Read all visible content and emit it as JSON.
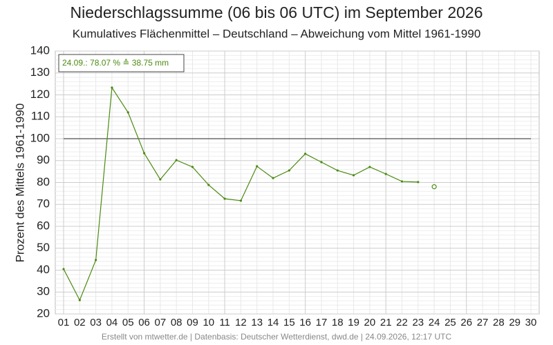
{
  "chart_data": {
    "type": "line",
    "title": "Niederschlagssumme (06 bis 06 UTC) im September 2026",
    "subtitle": "Kumulatives Flächenmittel – Deutschland – Abweichung vom Mittel 1961-1990",
    "y_label": "Prozent des Mittels 1961-1990",
    "annotation": "24.09.: 78.07 % ≙ 38.75 mm",
    "footer": "Erstellt von mtwetter.de | Datenbasis: Deutscher Wetterdienst, dwd.de | 24.09.2026, 12:17 UTC",
    "categories": [
      "01",
      "02",
      "03",
      "04",
      "05",
      "06",
      "07",
      "08",
      "09",
      "10",
      "11",
      "12",
      "13",
      "14",
      "15",
      "16",
      "17",
      "18",
      "19",
      "20",
      "21",
      "22",
      "23",
      "24",
      "25",
      "26",
      "27",
      "28",
      "29",
      "30"
    ],
    "series": [
      {
        "color": "#4a8a10",
        "marker": "dot",
        "values": [
          40.5,
          26.3,
          44.6,
          123.3,
          112,
          93.4,
          81.4,
          90.2,
          87.1,
          78.9,
          72.6,
          71.7,
          87.4,
          82.0,
          85.5,
          93.1,
          89.3,
          85.5,
          83.3,
          87.1,
          83.9,
          80.5,
          80.2,
          null,
          null,
          null,
          null,
          null,
          null,
          null
        ]
      },
      {
        "color": "#4a8a10",
        "marker": "open",
        "values": [
          null,
          null,
          null,
          null,
          null,
          null,
          null,
          null,
          null,
          null,
          null,
          null,
          null,
          null,
          null,
          null,
          null,
          null,
          null,
          null,
          null,
          null,
          null,
          78.07,
          null,
          null,
          null,
          null,
          null,
          null
        ]
      }
    ],
    "reference_line": 100,
    "ylim": [
      20,
      140
    ],
    "yticks": [
      20,
      30,
      40,
      50,
      60,
      70,
      80,
      90,
      100,
      110,
      120,
      130,
      140
    ],
    "grid": true
  }
}
